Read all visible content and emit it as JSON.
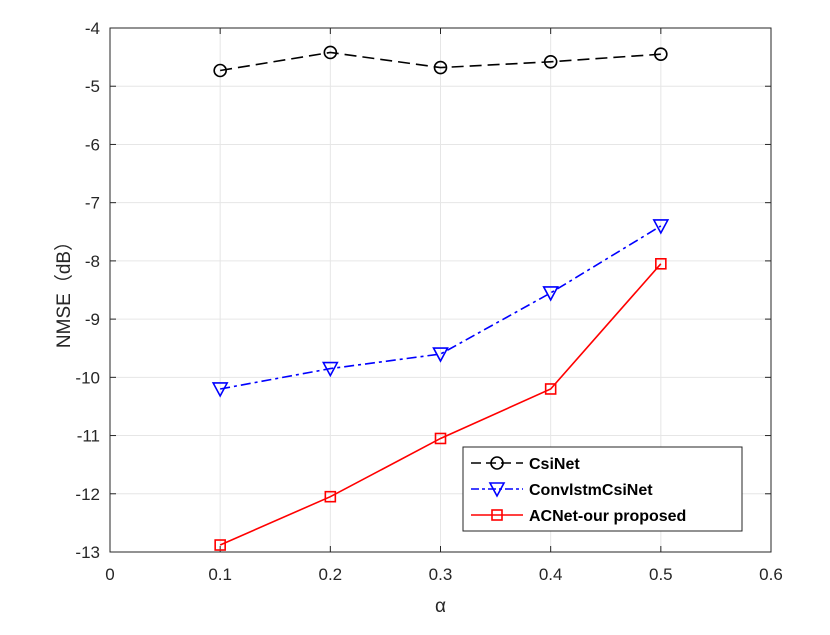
{
  "chart_data": {
    "type": "line",
    "title": "",
    "xlabel": "α",
    "ylabel": "NMSE（dB）",
    "xlim": [
      0,
      0.6
    ],
    "ylim": [
      -13,
      -4
    ],
    "xticks": [
      0,
      0.1,
      0.2,
      0.3,
      0.4,
      0.5,
      0.6
    ],
    "xtick_labels": [
      "0",
      "0.1",
      "0.2",
      "0.3",
      "0.4",
      "0.5",
      "0.6"
    ],
    "yticks": [
      -13,
      -12,
      -11,
      -10,
      -9,
      -8,
      -7,
      -6,
      -5,
      -4
    ],
    "ytick_labels": [
      "-13",
      "-12",
      "-11",
      "-10",
      "-9",
      "-8",
      "-7",
      "-6",
      "-5",
      "-4"
    ],
    "grid": true,
    "legend_position": "bottom-right",
    "x": [
      0.1,
      0.2,
      0.3,
      0.4,
      0.5
    ],
    "series": [
      {
        "name": "CsiNet",
        "values": [
          -4.73,
          -4.42,
          -4.68,
          -4.58,
          -4.45
        ],
        "color": "#000000",
        "dash": "dashed",
        "marker": "circle"
      },
      {
        "name": "ConvlstmCsiNet",
        "values": [
          -10.2,
          -9.85,
          -9.6,
          -8.55,
          -7.4
        ],
        "color": "#0000ff",
        "dash": "dashdot",
        "marker": "triangle-down"
      },
      {
        "name": "ACNet-our proposed",
        "values": [
          -12.88,
          -12.05,
          -11.05,
          -10.2,
          -8.05
        ],
        "color": "#ff0000",
        "dash": "solid",
        "marker": "square"
      }
    ]
  }
}
